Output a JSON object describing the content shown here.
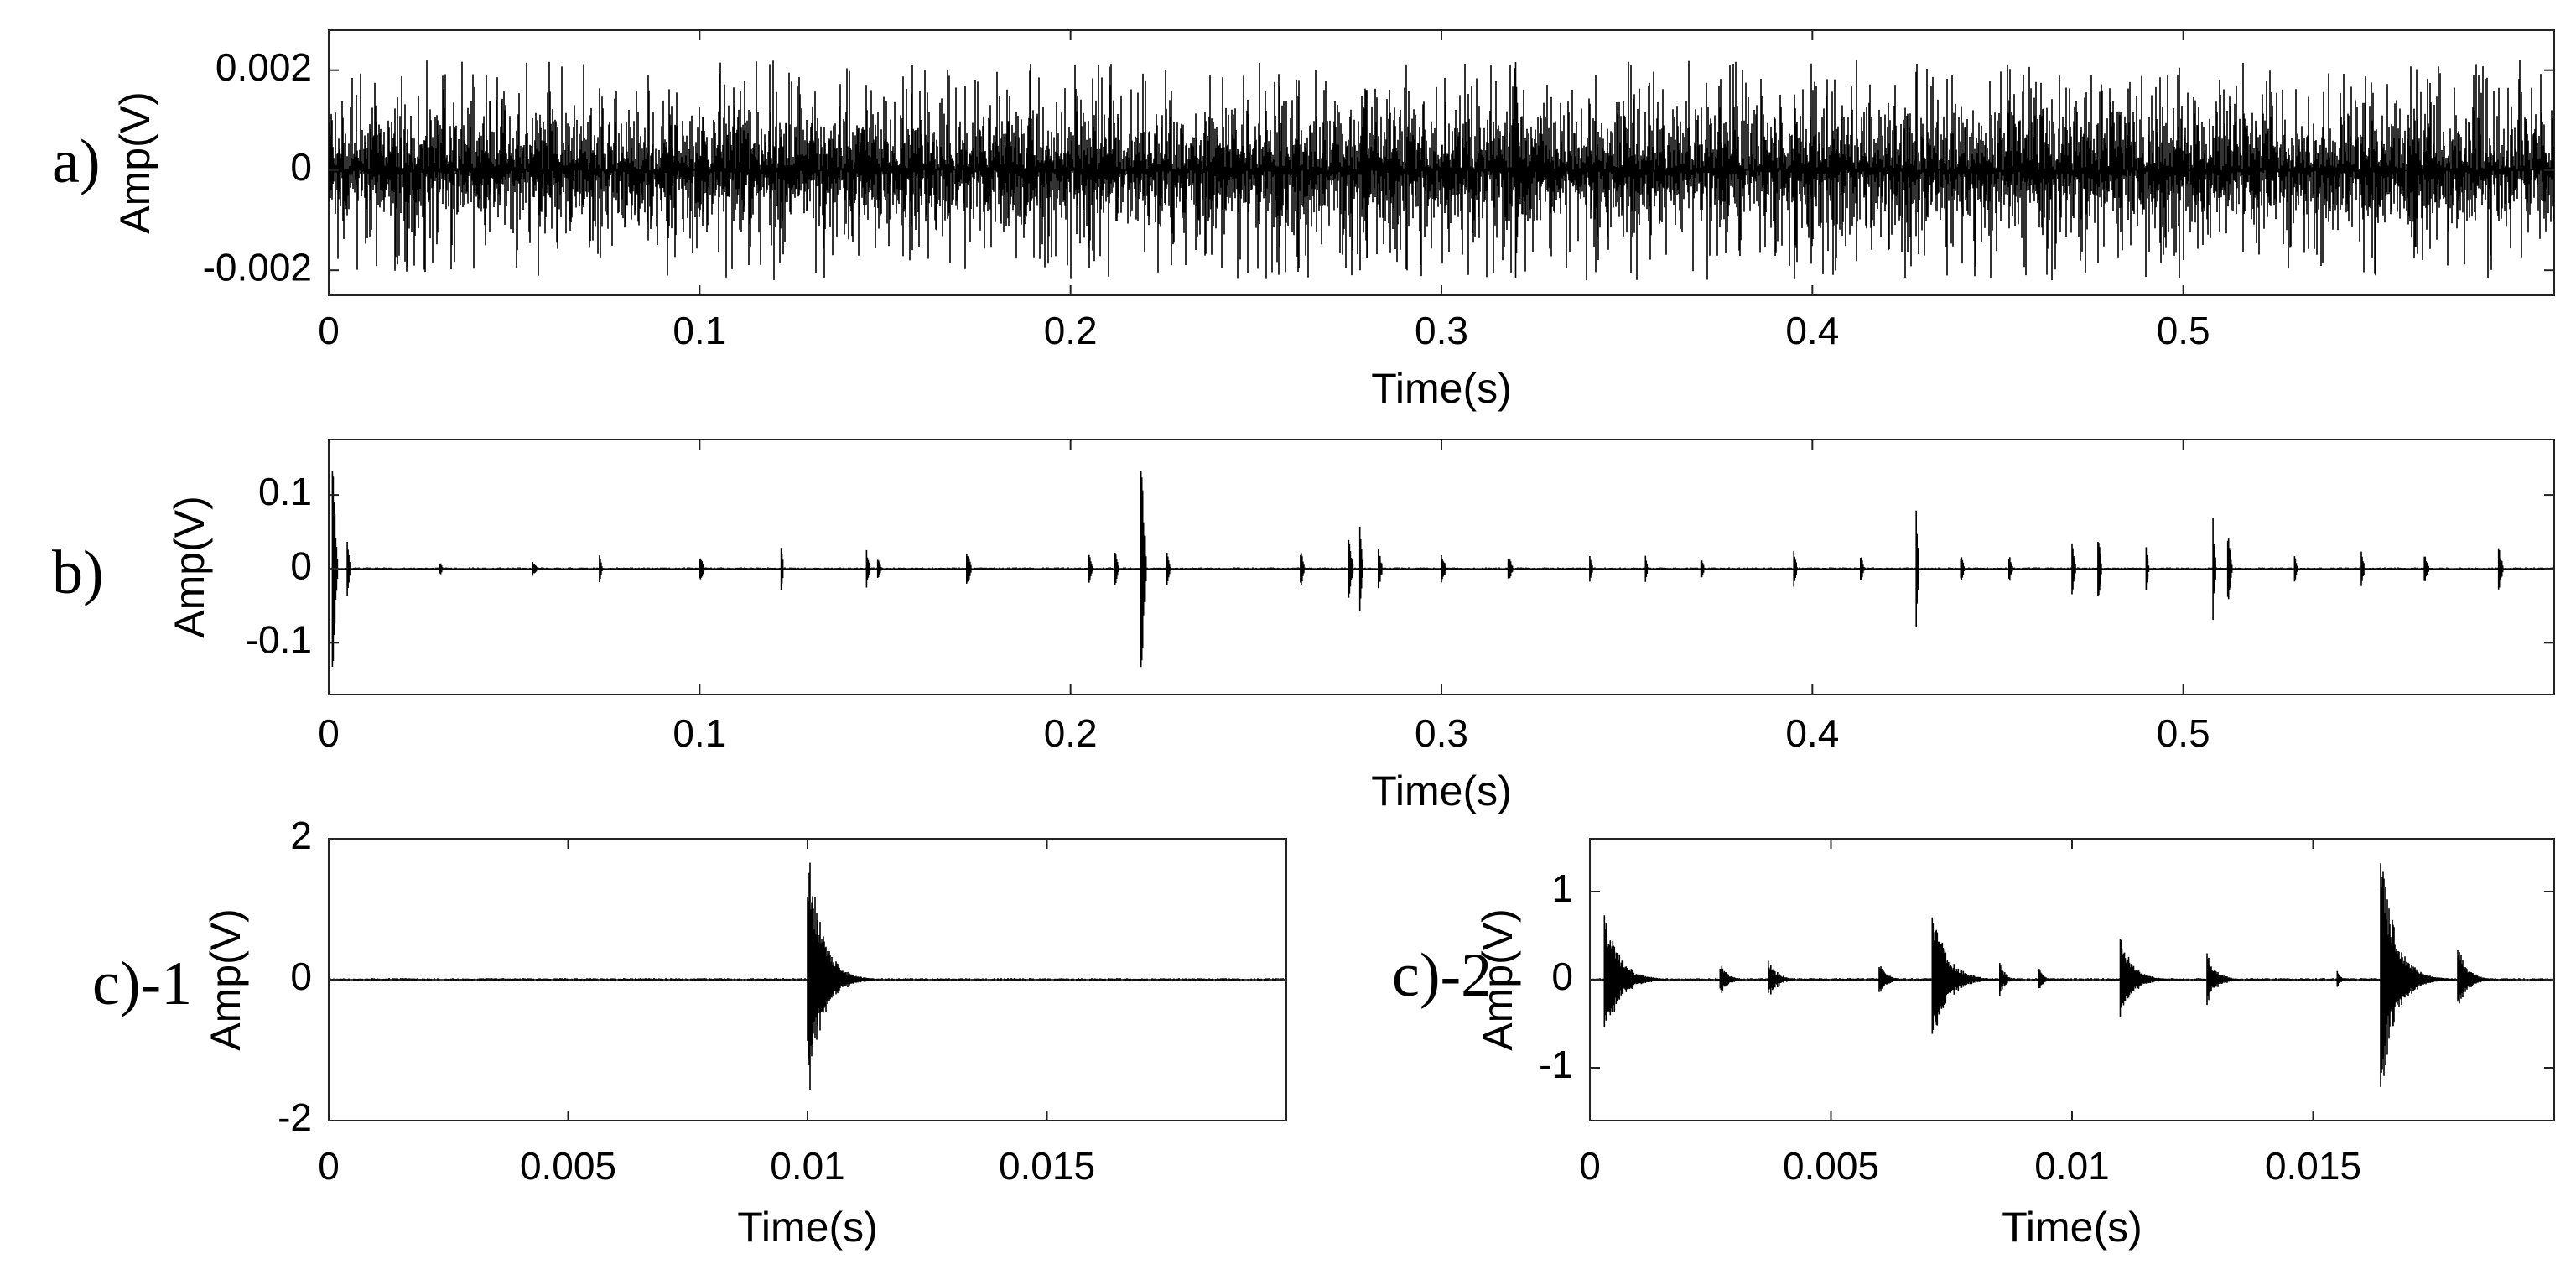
{
  "chart_data": [
    {
      "id": "a",
      "panel_label": "a)",
      "type": "line",
      "title": "",
      "xlabel": "Time(s)",
      "ylabel": "Amp(V)",
      "xlim": [
        0,
        0.6
      ],
      "ylim": [
        -0.0025,
        0.0028
      ],
      "xticks": [
        0,
        0.1,
        0.2,
        0.3,
        0.4,
        0.5
      ],
      "xtick_labels": [
        "0",
        "0.1",
        "0.2",
        "0.3",
        "0.4",
        "0.5"
      ],
      "yticks": [
        0.002,
        0,
        -0.002
      ],
      "ytick_labels": [
        "0.002",
        "0",
        "-0.002"
      ],
      "grid": false,
      "signal": {
        "kind": "noise",
        "x_range": [
          0,
          0.6
        ],
        "rms": 0.0007,
        "peak": 0.0022
      },
      "events": [
        {
          "x": 0.32,
          "amp": 0.0028
        }
      ]
    },
    {
      "id": "b",
      "panel_label": "b)",
      "type": "line",
      "title": "",
      "xlabel": "Time(s)",
      "ylabel": "Amp(V)",
      "xlim": [
        0,
        0.6
      ],
      "ylim": [
        -0.17,
        0.175
      ],
      "xticks": [
        0,
        0.1,
        0.2,
        0.3,
        0.4,
        0.5
      ],
      "xtick_labels": [
        "0",
        "0.1",
        "0.2",
        "0.3",
        "0.4",
        "0.5"
      ],
      "yticks": [
        0.1,
        0,
        -0.1
      ],
      "ytick_labels": [
        "0.1",
        "0",
        "-0.1"
      ],
      "grid": false,
      "events": [
        {
          "x": 0.001,
          "amp": 0.16
        },
        {
          "x": 0.005,
          "amp": 0.04
        },
        {
          "x": 0.03,
          "amp": 0.01
        },
        {
          "x": 0.055,
          "amp": 0.01
        },
        {
          "x": 0.073,
          "amp": 0.03
        },
        {
          "x": 0.1,
          "amp": 0.02
        },
        {
          "x": 0.122,
          "amp": 0.04
        },
        {
          "x": 0.145,
          "amp": 0.03
        },
        {
          "x": 0.148,
          "amp": 0.02
        },
        {
          "x": 0.172,
          "amp": 0.03
        },
        {
          "x": 0.205,
          "amp": 0.02
        },
        {
          "x": 0.212,
          "amp": 0.03
        },
        {
          "x": 0.219,
          "amp": 0.17
        },
        {
          "x": 0.226,
          "amp": 0.03
        },
        {
          "x": 0.262,
          "amp": 0.03
        },
        {
          "x": 0.275,
          "amp": 0.05
        },
        {
          "x": 0.278,
          "amp": 0.07
        },
        {
          "x": 0.283,
          "amp": 0.03
        },
        {
          "x": 0.3,
          "amp": 0.02
        },
        {
          "x": 0.318,
          "amp": 0.02
        },
        {
          "x": 0.34,
          "amp": 0.02
        },
        {
          "x": 0.355,
          "amp": 0.02
        },
        {
          "x": 0.37,
          "amp": 0.015
        },
        {
          "x": 0.395,
          "amp": 0.03
        },
        {
          "x": 0.413,
          "amp": 0.02
        },
        {
          "x": 0.428,
          "amp": 0.08
        },
        {
          "x": 0.44,
          "amp": 0.02
        },
        {
          "x": 0.453,
          "amp": 0.02
        },
        {
          "x": 0.47,
          "amp": 0.04
        },
        {
          "x": 0.477,
          "amp": 0.06
        },
        {
          "x": 0.49,
          "amp": 0.03
        },
        {
          "x": 0.508,
          "amp": 0.07
        },
        {
          "x": 0.512,
          "amp": 0.06
        },
        {
          "x": 0.53,
          "amp": 0.02
        },
        {
          "x": 0.548,
          "amp": 0.03
        },
        {
          "x": 0.565,
          "amp": 0.02
        },
        {
          "x": 0.585,
          "amp": 0.03
        }
      ]
    },
    {
      "id": "c1",
      "panel_label": "c)-1",
      "type": "line",
      "title": "",
      "xlabel": "Time(s)",
      "ylabel": "Amp(V)",
      "xlim": [
        0,
        0.02
      ],
      "ylim": [
        -2,
        2
      ],
      "xticks": [
        0,
        0.005,
        0.01,
        0.015
      ],
      "xtick_labels": [
        "0",
        "0.005",
        "0.01",
        "0.015"
      ],
      "yticks": [
        2,
        0,
        -2
      ],
      "ytick_labels": [
        "2",
        "0",
        "-2"
      ],
      "grid": false,
      "events": [
        {
          "x": 0.01,
          "amp": 2.0,
          "decay": 0.0003
        }
      ]
    },
    {
      "id": "c2",
      "panel_label": "c)-2",
      "type": "line",
      "title": "",
      "xlabel": "Time(s)",
      "ylabel": "Amp(V)",
      "xlim": [
        0,
        0.02
      ],
      "ylim": [
        -1.6,
        1.6
      ],
      "xticks": [
        0,
        0.005,
        0.01,
        0.015
      ],
      "xtick_labels": [
        "0",
        "0.005",
        "0.01",
        "0.015"
      ],
      "yticks": [
        1,
        0,
        -1
      ],
      "ytick_labels": [
        "1",
        "0",
        "-1"
      ],
      "grid": false,
      "events": [
        {
          "x": 0.0003,
          "amp": 0.8,
          "decay": 0.0003
        },
        {
          "x": 0.0027,
          "amp": 0.2,
          "decay": 0.00015
        },
        {
          "x": 0.0037,
          "amp": 0.25,
          "decay": 0.00018
        },
        {
          "x": 0.006,
          "amp": 0.2,
          "decay": 0.00015
        },
        {
          "x": 0.0071,
          "amp": 0.85,
          "decay": 0.0003
        },
        {
          "x": 0.0085,
          "amp": 0.25,
          "decay": 0.0001
        },
        {
          "x": 0.0093,
          "amp": 0.15,
          "decay": 0.0001
        },
        {
          "x": 0.011,
          "amp": 0.55,
          "decay": 0.00025
        },
        {
          "x": 0.0128,
          "amp": 0.3,
          "decay": 0.0002
        },
        {
          "x": 0.0155,
          "amp": 0.1,
          "decay": 8e-05
        },
        {
          "x": 0.0164,
          "amp": 1.55,
          "decay": 0.0003
        },
        {
          "x": 0.018,
          "amp": 0.4,
          "decay": 0.0002
        }
      ]
    }
  ]
}
